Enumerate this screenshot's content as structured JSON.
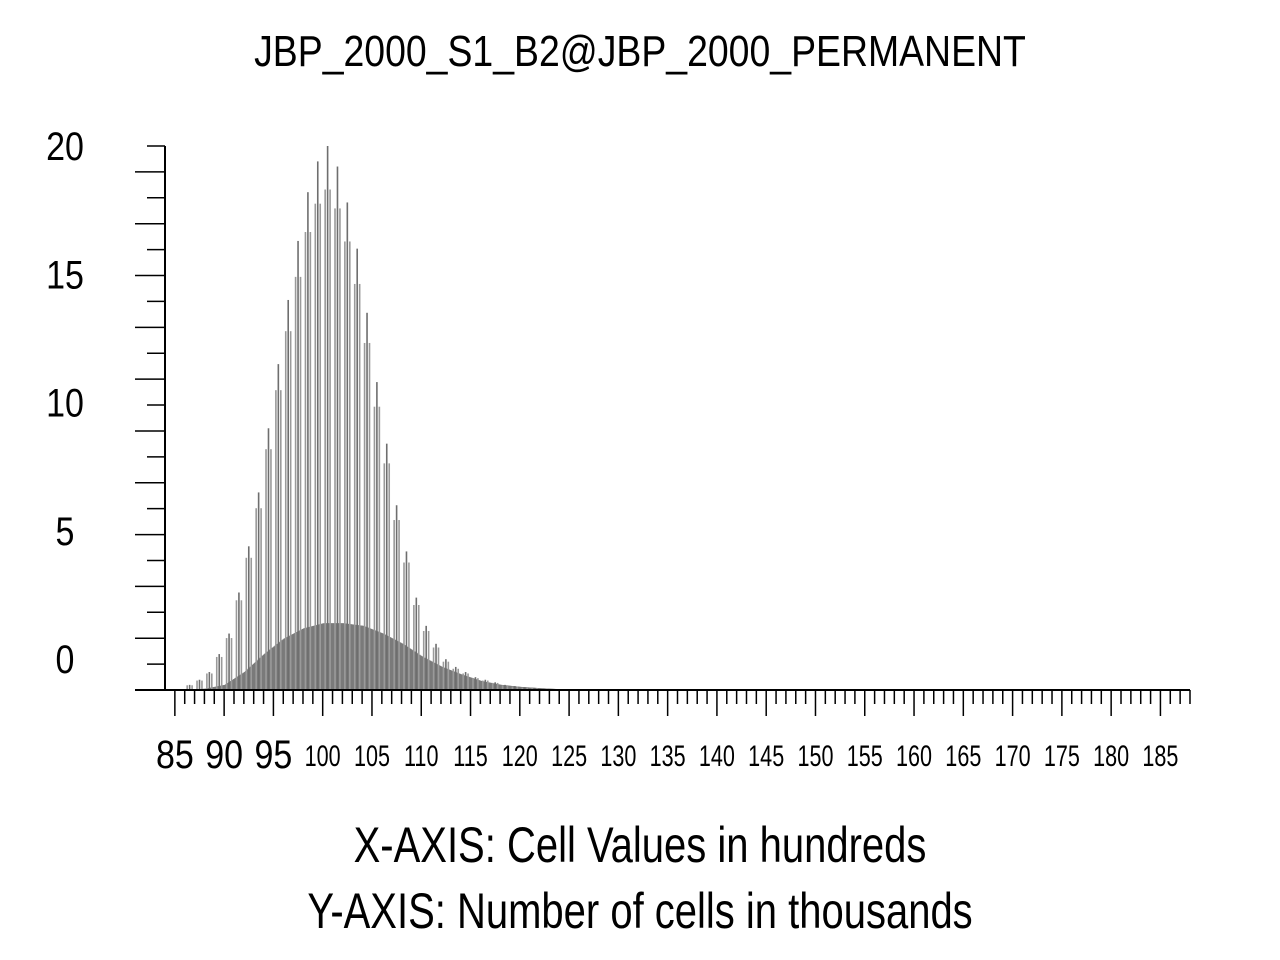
{
  "chart_data": {
    "type": "bar",
    "title": "JBP_2000_S1_B2@JBP_2000_PERMANENT",
    "xlabel": "X-AXIS: Cell Values in hundreds",
    "ylabel": "Y-AXIS: Number of cells in thousands",
    "x_range": [
      84,
      188
    ],
    "y_range": [
      -1.2,
      20.0
    ],
    "x_tick_labels": [
      "85",
      "90",
      "95",
      "100",
      "105",
      "110",
      "115",
      "120",
      "125",
      "130",
      "135",
      "140",
      "145",
      "150",
      "155",
      "160",
      "165",
      "170",
      "175",
      "180",
      "185"
    ],
    "y_tick_labels": [
      "0",
      "5",
      "10",
      "15",
      "20"
    ],
    "bar_color": "#7a7a7a",
    "grid": false,
    "legend": "none",
    "peaks": {
      "x": [
        86.5,
        87.5,
        88.5,
        89.5,
        90.5,
        91.5,
        92.5,
        93.5,
        94.5,
        95.5,
        96.5,
        97.5,
        98.5,
        99.5,
        100.5,
        101.5,
        102.5,
        103.5,
        104.5,
        105.5,
        106.5,
        107.5,
        108.5,
        109.5,
        110.5,
        111.5,
        112.5,
        113.5,
        114.5,
        115.5,
        116.5,
        117.5,
        118.5,
        119.5,
        120.5,
        121.5,
        122.5
      ],
      "y": [
        -1.0,
        -0.8,
        -0.5,
        0.2,
        1.0,
        2.6,
        4.4,
        6.5,
        9.0,
        11.5,
        14.0,
        16.3,
        18.2,
        19.4,
        20.0,
        19.2,
        17.8,
        16.0,
        13.5,
        10.8,
        8.4,
        6.0,
        4.2,
        2.4,
        1.3,
        0.6,
        0.0,
        -0.3,
        -0.5,
        -0.7,
        -0.8,
        -0.9,
        -1.0,
        -1.05,
        -1.1,
        -1.12,
        -1.15
      ]
    },
    "base": {
      "x": [
        86,
        88,
        90,
        92,
        94,
        96,
        98,
        100,
        102,
        104,
        106,
        108,
        110,
        112,
        114,
        116,
        118,
        120,
        122,
        124,
        126
      ],
      "y": [
        -1.2,
        -1.15,
        -1.0,
        -0.5,
        0.2,
        0.8,
        1.2,
        1.4,
        1.4,
        1.3,
        1.0,
        0.6,
        0.1,
        -0.3,
        -0.6,
        -0.85,
        -1.0,
        -1.08,
        -1.13,
        -1.17,
        -1.2
      ]
    }
  }
}
